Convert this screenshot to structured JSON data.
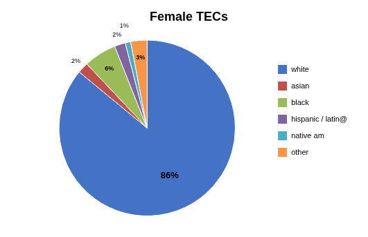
{
  "chart_data": {
    "type": "pie",
    "title": "Female TECs",
    "categories": [
      "white",
      "asian",
      "black",
      "hispanic / latin@",
      "native am",
      "other"
    ],
    "values": [
      86,
      2,
      6,
      2,
      1,
      3
    ],
    "value_labels": [
      "86%",
      "2%",
      "6%",
      "2%",
      "1%",
      "3%"
    ],
    "colors": [
      "#4472C4",
      "#C0504D",
      "#9BBB59",
      "#8064A2",
      "#4BACC6",
      "#F79646"
    ],
    "data_labels": true,
    "legend": "right"
  }
}
